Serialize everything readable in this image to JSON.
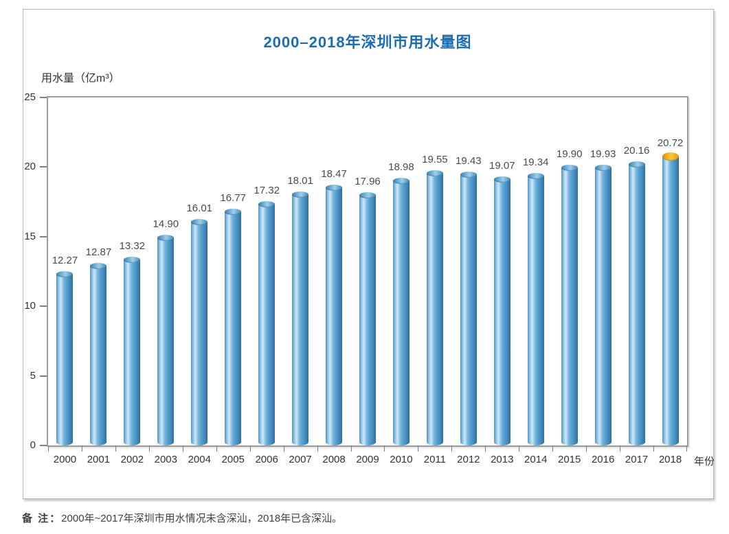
{
  "chart_data": {
    "type": "bar",
    "title": "2000–2018年深圳市用水量图",
    "ylabel": "用水量（亿m³）",
    "xlabel": "年份",
    "categories": [
      "2000",
      "2001",
      "2002",
      "2003",
      "2004",
      "2005",
      "2006",
      "2007",
      "2008",
      "2009",
      "2010",
      "2011",
      "2012",
      "2013",
      "2014",
      "2015",
      "2016",
      "2017",
      "2018"
    ],
    "values": [
      12.27,
      12.87,
      13.32,
      14.9,
      16.01,
      16.77,
      17.32,
      18.01,
      18.47,
      17.96,
      18.98,
      19.55,
      19.43,
      19.07,
      19.34,
      19.9,
      19.93,
      20.16,
      20.72
    ],
    "value_labels": [
      "12.27",
      "12.87",
      "13.32",
      "14.90",
      "16.01",
      "16.77",
      "17.32",
      "18.01",
      "18.47",
      "17.96",
      "18.98",
      "19.55",
      "19.43",
      "19.07",
      "19.34",
      "19.90",
      "19.93",
      "20.16",
      "20.72"
    ],
    "ylim": [
      0,
      25
    ],
    "yticks": [
      0,
      5,
      10,
      15,
      20,
      25
    ],
    "grid": false,
    "legend": "none",
    "bar_style": "cylinder",
    "highlighted_category": "2018",
    "highlight_cap_color": "#f2ae17"
  },
  "note": {
    "label": "备 注：",
    "text": "2000年~2017年深圳市用水情况未含深汕，2018年已含深汕。"
  },
  "colors": {
    "title_blue": "#1b6cb3",
    "bar_body_main": "#55a0cf",
    "bar_body_highlight": "#cde9f8",
    "bar_body_edge": "#2f6f9f",
    "cap_orange": "#f2ae17",
    "plot_frame": "#9c9c9c",
    "axis_text": "#333333",
    "value_text": "#4a4a4a"
  }
}
